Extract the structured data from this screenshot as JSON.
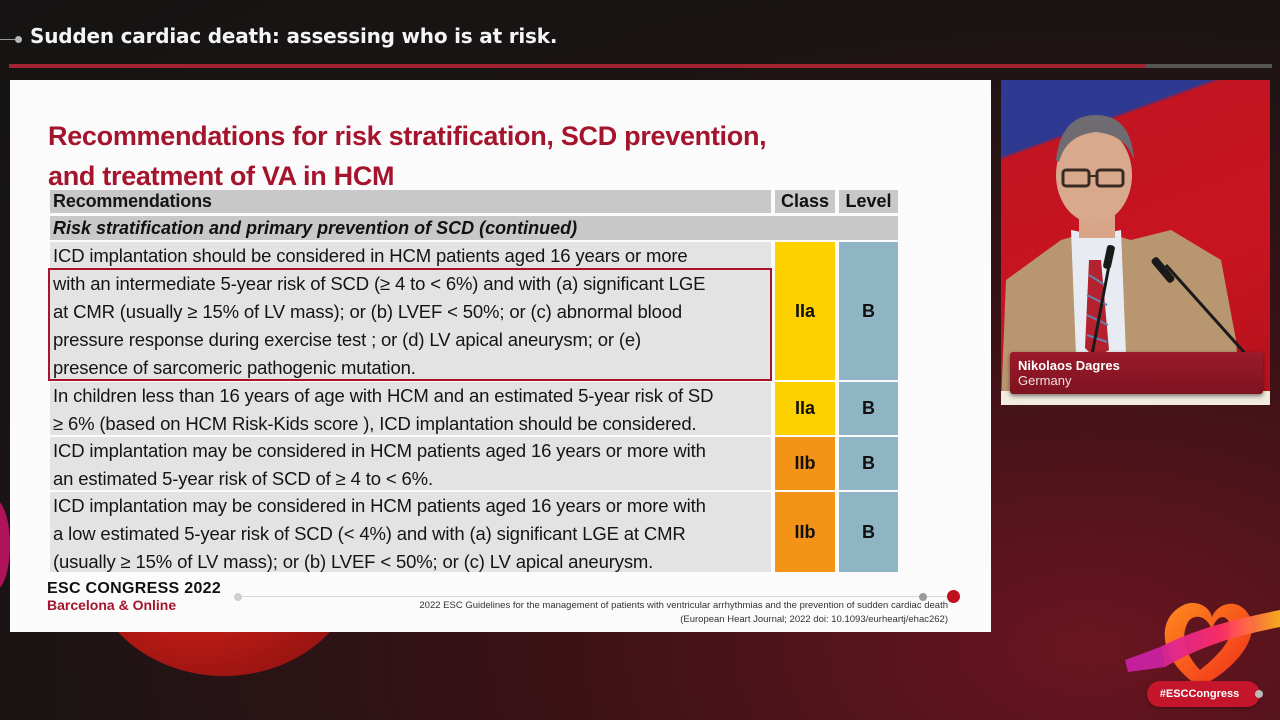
{
  "header": {
    "session_title": "Sudden cardiac death: assessing who is at risk.",
    "progress_percent": 90
  },
  "slide": {
    "title_line1": "Recommendations for risk stratification, SCD prevention,",
    "title_line2": "and treatment of VA in HCM",
    "table": {
      "headers": {
        "recommendations": "Recommendations",
        "class": "Class",
        "level": "Level"
      },
      "section": "Risk stratification and primary prevention of SCD (continued)",
      "rows": [
        {
          "lines": [
            "ICD implantation should be considered in HCM patients aged 16 years or more",
            "with an intermediate 5-year risk of SCD (≥ 4 to < 6%) and with (a) significant LGE",
            "at CMR (usually ≥ 15% of LV mass); or (b) LVEF < 50%; or (c) abnormal blood",
            "pressure response during exercise test ; or (d) LV apical aneurysm; or (e)",
            "presence of sarcomeric pathogenic mutation."
          ],
          "class": "IIa",
          "level": "B",
          "highlighted": true
        },
        {
          "lines": [
            "In children less than 16 years of age with HCM and an estimated 5-year risk of SD",
            "≥ 6% (based on HCM Risk-Kids score ), ICD implantation should be considered."
          ],
          "class": "IIa",
          "level": "B"
        },
        {
          "lines": [
            "ICD implantation may be considered in HCM patients aged 16 years or more with",
            "an estimated 5-year risk of SCD of ≥ 4 to < 6%."
          ],
          "class": "IIb",
          "level": "B"
        },
        {
          "lines": [
            "ICD implantation may be considered in HCM patients aged 16 years or more with",
            "a low estimated 5-year risk of SCD (< 4%)  and with (a) significant LGE at CMR",
            "(usually ≥ 15% of LV mass); or (b) LVEF < 50%; or (c) LV apical aneurysm."
          ],
          "class": "IIb",
          "level": "B"
        }
      ]
    },
    "footer": {
      "logo_line1": "ESC CONGRESS 2022",
      "logo_line2": "Barcelona & Online",
      "citation_line1": "2022 ESC Guidelines for the management of patients with ventricular arrhythmias and the prevention of sudden cardiac death",
      "citation_line2": "(European Heart Journal; 2022    doi: 10.1093/eurheartj/ehac262)"
    }
  },
  "speaker": {
    "name": "Nikolaos Dagres",
    "country": "Germany"
  },
  "branding": {
    "hashtag": "#ESCCongress"
  },
  "colors": {
    "accent_red": "#a5142d",
    "class_IIa": "#fdd000",
    "class_IIb": "#f39317",
    "level_bg": "#8fb4c4",
    "header_gray": "#c8c8c8",
    "row_gray": "#e3e3e3"
  }
}
